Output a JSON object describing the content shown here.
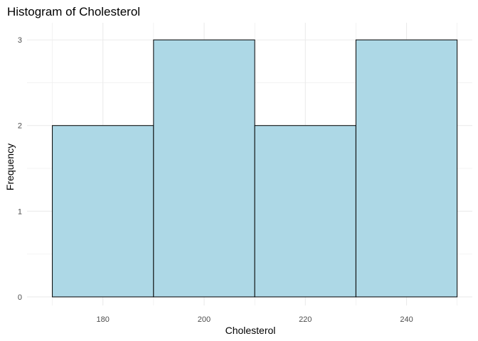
{
  "chart_data": {
    "type": "bar",
    "title": "Histogram of Cholesterol",
    "xlabel": "Cholesterol",
    "ylabel": "Frequency",
    "bins": [
      {
        "start": 170,
        "end": 190,
        "count": 2
      },
      {
        "start": 190,
        "end": 210,
        "count": 3
      },
      {
        "start": 210,
        "end": 230,
        "count": 2
      },
      {
        "start": 230,
        "end": 250,
        "count": 3
      }
    ],
    "x_ticks": [
      180,
      200,
      220,
      240
    ],
    "y_ticks": [
      0,
      1,
      2,
      3
    ],
    "xlim": [
      165,
      253
    ],
    "ylim": [
      -0.1,
      3.2
    ],
    "grid": true,
    "bar_fill": "#add8e6",
    "bar_stroke": "#000000",
    "grid_color": "#ebebeb"
  }
}
